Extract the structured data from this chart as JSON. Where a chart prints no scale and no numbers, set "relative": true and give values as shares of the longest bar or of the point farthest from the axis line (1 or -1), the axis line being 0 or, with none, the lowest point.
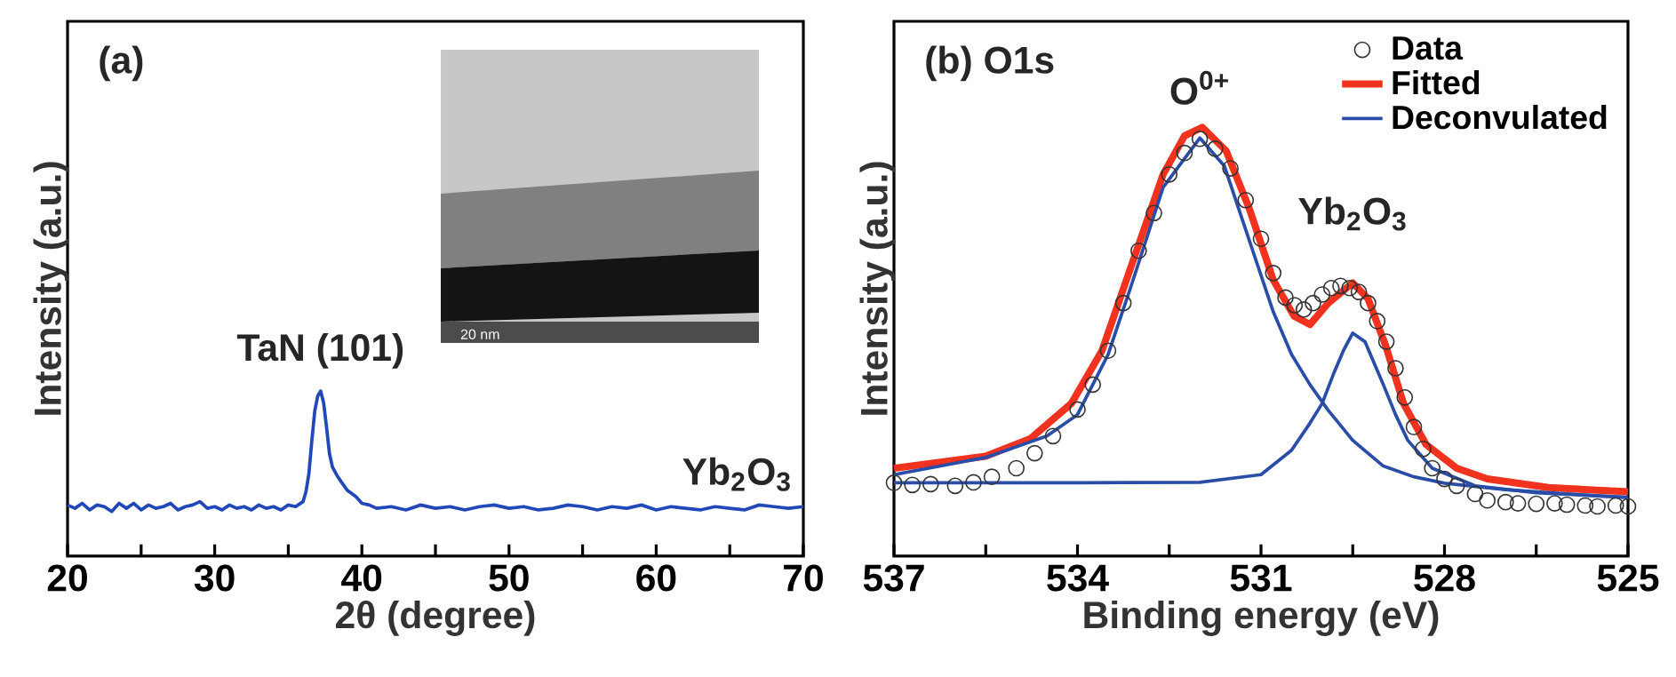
{
  "chart_data": [
    {
      "type": "line",
      "relative": true,
      "xlabel": "2θ (degree)",
      "ylabel": "Intensity (a.u.)",
      "xlim": [
        20,
        70
      ],
      "xticks": [
        20,
        {
          "value": 25,
          "label": null
        },
        30,
        {
          "value": 35,
          "label": null
        },
        40,
        {
          "value": 45,
          "label": null
        },
        50,
        {
          "value": 55,
          "label": null
        },
        60,
        {
          "value": 65,
          "label": null
        },
        70
      ],
      "annotations": [
        "(a)",
        "20 nm",
        {
          "text": "TaN (101)",
          "x": 37.2,
          "y": 1.0
        },
        {
          "text": "Yb$_{2}$O$_{3}$",
          "x": 65.5,
          "y": 0.3
        }
      ],
      "grid": false,
      "legend": false,
      "series": [
        {
          "color": "#2148b8",
          "line_style": "solid",
          "marker": "none",
          "x": [
            20,
            20.5,
            21,
            21.5,
            22,
            22.5,
            23,
            23.5,
            24,
            24.5,
            25,
            25.5,
            26,
            26.5,
            27,
            27.5,
            28,
            28.5,
            29,
            29.5,
            30,
            30.5,
            31,
            31.5,
            32,
            32.5,
            33,
            33.5,
            34,
            34.5,
            35,
            35.5,
            36,
            36.2,
            36.4,
            36.6,
            36.8,
            37,
            37.2,
            37.4,
            37.6,
            37.8,
            38,
            38.3,
            38.6,
            39,
            39.6,
            40,
            40.5,
            41,
            42,
            43,
            44,
            45,
            46,
            47,
            48,
            49,
            50,
            51,
            52,
            53,
            54,
            55,
            56,
            57,
            58,
            59,
            60,
            61,
            62,
            63,
            64,
            65,
            66,
            67,
            68,
            69,
            70
          ],
          "values": [
            0.31,
            0.29,
            0.32,
            0.28,
            0.31,
            0.3,
            0.27,
            0.32,
            0.29,
            0.32,
            0.28,
            0.31,
            0.29,
            0.3,
            0.32,
            0.28,
            0.3,
            0.31,
            0.33,
            0.29,
            0.3,
            0.28,
            0.31,
            0.29,
            0.3,
            0.28,
            0.31,
            0.29,
            0.3,
            0.28,
            0.31,
            0.3,
            0.33,
            0.39,
            0.5,
            0.7,
            0.88,
            0.97,
            1.0,
            0.93,
            0.78,
            0.62,
            0.54,
            0.49,
            0.45,
            0.4,
            0.36,
            0.32,
            0.31,
            0.29,
            0.3,
            0.28,
            0.31,
            0.29,
            0.3,
            0.28,
            0.3,
            0.31,
            0.29,
            0.3,
            0.28,
            0.29,
            0.31,
            0.3,
            0.28,
            0.3,
            0.29,
            0.31,
            0.28,
            0.3,
            0.29,
            0.28,
            0.3,
            0.29,
            0.28,
            0.31,
            0.3,
            0.29,
            0.3
          ]
        }
      ]
    },
    {
      "type": "line",
      "relative": true,
      "xlabel": "Binding energy (eV)",
      "ylabel": "Intensity (a.u.)",
      "xlim": [
        537,
        525
      ],
      "xticks": [
        537,
        {
          "value": 535.5,
          "label": null
        },
        534,
        {
          "value": 532.5,
          "label": null
        },
        531,
        {
          "value": 529.5,
          "label": null
        },
        528,
        {
          "value": 526.5,
          "label": null
        },
        525
      ],
      "annotations": [
        "(b)  O1s",
        {
          "text": "O$^{0+}$",
          "x": 532,
          "y": 1.0
        },
        {
          "text": "Yb$_{2}$O$_{3}$",
          "x": 529.5,
          "y": 0.64
        }
      ],
      "grid": false,
      "legend": "top right",
      "series": [
        {
          "name": "Data",
          "type": "scatter",
          "marker": "circle",
          "color": "#333333",
          "x": [
            537,
            536.7,
            536.4,
            536,
            535.7,
            535.4,
            535,
            534.7,
            534.4,
            534,
            533.75,
            533.5,
            533.25,
            533,
            532.75,
            532.5,
            532.25,
            532,
            531.75,
            531.5,
            531.25,
            531,
            530.8,
            530.6,
            530.45,
            530.3,
            530.15,
            530,
            529.85,
            529.7,
            529.55,
            529.4,
            529.25,
            529.1,
            528.95,
            528.8,
            528.65,
            528.5,
            528.35,
            528.2,
            528,
            527.8,
            527.5,
            527.3,
            527,
            526.8,
            526.5,
            526.2,
            526,
            525.7,
            525.5,
            525.2,
            525
          ],
          "values": [
            0.171,
            0.166,
            0.168,
            0.164,
            0.172,
            0.185,
            0.205,
            0.24,
            0.28,
            0.342,
            0.4,
            0.479,
            0.59,
            0.712,
            0.8,
            0.89,
            0.94,
            0.973,
            0.95,
            0.904,
            0.83,
            0.74,
            0.66,
            0.603,
            0.585,
            0.575,
            0.59,
            0.61,
            0.625,
            0.63,
            0.625,
            0.616,
            0.59,
            0.548,
            0.5,
            0.438,
            0.37,
            0.301,
            0.25,
            0.205,
            0.18,
            0.164,
            0.145,
            0.13,
            0.126,
            0.123,
            0.122,
            0.123,
            0.12,
            0.118,
            0.116,
            0.118,
            0.116
          ]
        },
        {
          "name": "Fitted",
          "type": "line",
          "marker": "none",
          "line_style": "solid",
          "color": "#f0321e",
          "x": [
            537,
            535.5,
            534.77,
            534.1,
            533.6,
            533.1,
            532.6,
            532.25,
            531.96,
            531.57,
            531.19,
            530.8,
            530.46,
            530.2,
            529.9,
            529.5,
            529.25,
            528.96,
            528.67,
            528.3,
            527.8,
            527.3,
            526.3,
            525
          ],
          "values": [
            0.205,
            0.233,
            0.274,
            0.356,
            0.479,
            0.685,
            0.89,
            0.98,
            1.0,
            0.945,
            0.81,
            0.644,
            0.56,
            0.54,
            0.59,
            0.637,
            0.6,
            0.49,
            0.356,
            0.26,
            0.205,
            0.18,
            0.16,
            0.15
          ]
        },
        {
          "name": "Deconvulated",
          "type": "line",
          "marker": "none",
          "line_style": "solid",
          "color": "#2a4ea8",
          "x": [
            537,
            535.5,
            534.5,
            534,
            533.5,
            533.1,
            532.6,
            532,
            531.6,
            531.2,
            530.8,
            530.5,
            530.2,
            529.9,
            529.5,
            529,
            528.5,
            528,
            527,
            526,
            525
          ],
          "values": [
            0.19,
            0.23,
            0.28,
            0.33,
            0.47,
            0.64,
            0.86,
            0.975,
            0.91,
            0.74,
            0.57,
            0.47,
            0.4,
            0.34,
            0.27,
            0.21,
            0.185,
            0.17,
            0.155,
            0.145,
            0.137
          ]
        },
        {
          "type": "line",
          "marker": "none",
          "line_style": "solid",
          "color": "#2a4ea8",
          "x": [
            537,
            534,
            532,
            531,
            530.5,
            530.2,
            530,
            529.8,
            529.65,
            529.5,
            529.3,
            529,
            528.8,
            528.6,
            528.2,
            527.5,
            526.5,
            525
          ],
          "values": [
            0.171,
            0.171,
            0.172,
            0.19,
            0.247,
            0.31,
            0.356,
            0.43,
            0.48,
            0.52,
            0.5,
            0.4,
            0.33,
            0.27,
            0.205,
            0.164,
            0.148,
            0.137
          ]
        }
      ]
    }
  ]
}
